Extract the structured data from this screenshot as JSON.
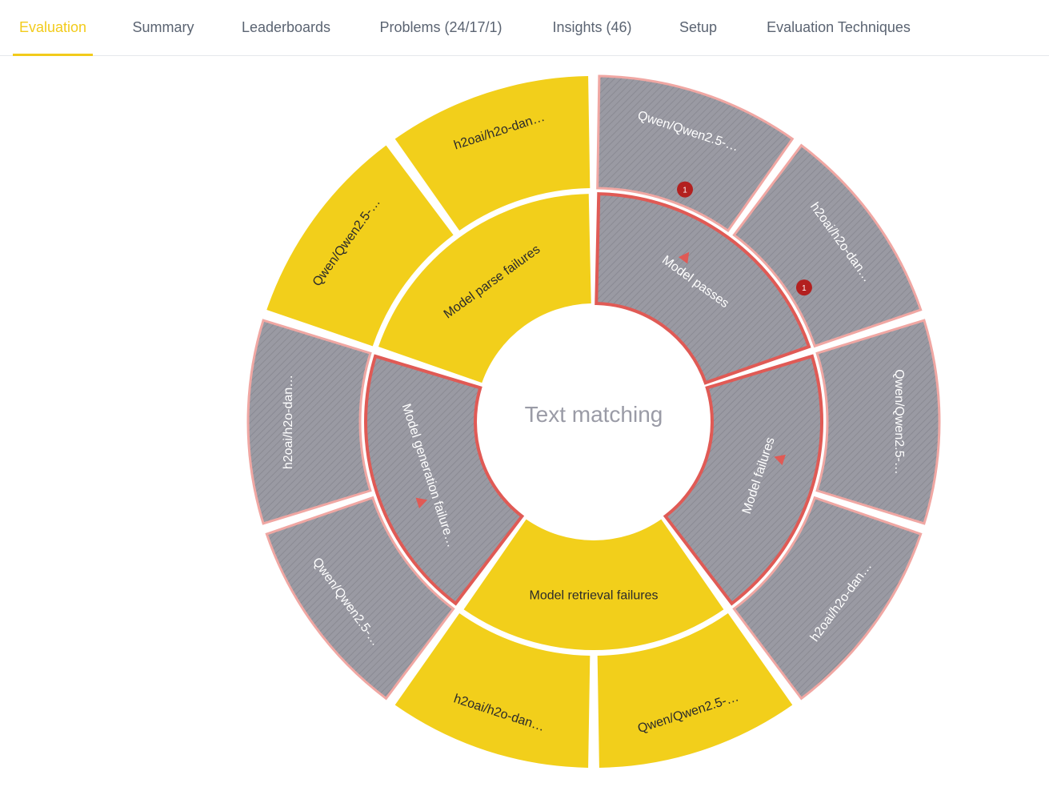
{
  "tabs": [
    {
      "label": "Evaluation",
      "active": true
    },
    {
      "label": "Summary",
      "active": false
    },
    {
      "label": "Leaderboards",
      "active": false
    },
    {
      "label": "Problems (24/17/1)",
      "active": false
    },
    {
      "label": "Insights (46)",
      "active": false
    },
    {
      "label": "Setup",
      "active": false
    },
    {
      "label": "Evaluation Techniques",
      "active": false
    }
  ],
  "colors": {
    "accent": "#f2cb1b",
    "yellow_segment": "#f2cf1b",
    "gray_segment": "#9a9aa3",
    "problem_stroke": "#e05a55",
    "badge": "#b3201f"
  },
  "chart_data": {
    "type": "sunburst",
    "title": "Text matching",
    "inner": [
      {
        "label": "Model passes",
        "style": "problem",
        "warning_icon": true
      },
      {
        "label": "Model failures",
        "style": "problem",
        "warning_icon": true
      },
      {
        "label": "Model retrieval failures",
        "style": "normal",
        "warning_icon": false
      },
      {
        "label": "Model generation failure…",
        "style": "problem",
        "warning_icon": true
      },
      {
        "label": "Model parse failures",
        "style": "normal",
        "warning_icon": false
      }
    ],
    "outer": [
      {
        "label": "Qwen/Qwen2.5-…",
        "parent": 0,
        "style": "problem",
        "badge": "1"
      },
      {
        "label": "h2oai/h2o-dan…",
        "parent": 0,
        "style": "problem",
        "badge": "1"
      },
      {
        "label": "Qwen/Qwen2.5-…",
        "parent": 1,
        "style": "problem",
        "badge": null
      },
      {
        "label": "h2oai/h2o-dan…",
        "parent": 1,
        "style": "problem",
        "badge": null
      },
      {
        "label": "Qwen/Qwen2.5-…",
        "parent": 2,
        "style": "normal",
        "badge": null
      },
      {
        "label": "h2oai/h2o-dan…",
        "parent": 2,
        "style": "normal",
        "badge": null
      },
      {
        "label": "Qwen/Qwen2.5-…",
        "parent": 3,
        "style": "problem",
        "badge": null
      },
      {
        "label": "h2oai/h2o-dan…",
        "parent": 3,
        "style": "problem",
        "badge": null
      },
      {
        "label": "Qwen/Qwen2.5-…",
        "parent": 4,
        "style": "normal",
        "badge": null
      },
      {
        "label": "h2oai/h2o-dan…",
        "parent": 4,
        "style": "normal",
        "badge": null
      }
    ]
  }
}
